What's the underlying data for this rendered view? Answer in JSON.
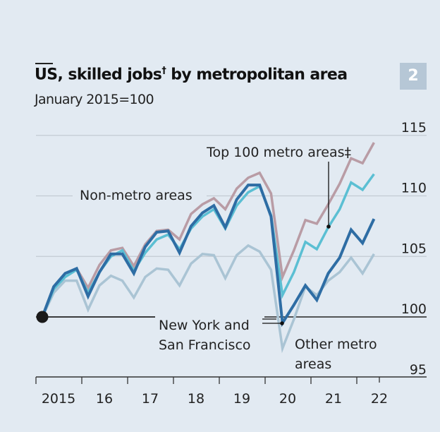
{
  "header": {
    "title": "US, skilled jobs",
    "title_mark": "†",
    "subtitle": "January 2015=100",
    "chart_number": "2"
  },
  "chart_data": {
    "type": "line",
    "title": "US, skilled jobs† by metropolitan area",
    "subtitle": "January 2015=100",
    "x_start": "2015 Q1",
    "x_frequency": "quarterly",
    "x_ticks": [
      "2015",
      "16",
      "17",
      "18",
      "19",
      "20",
      "21",
      "22"
    ],
    "ylim": [
      95,
      115
    ],
    "y_ticks": [
      "95",
      "100",
      "105",
      "110",
      "115"
    ],
    "y_tick_values": [
      95,
      100,
      105,
      110,
      115
    ],
    "grid": true,
    "series": [
      {
        "name": "Other metro areas",
        "color": "#aac4d4",
        "values": [
          100,
          102.0,
          103.0,
          103.0,
          100.6,
          102.6,
          103.4,
          103.0,
          101.6,
          103.3,
          104.0,
          103.9,
          102.6,
          104.4,
          105.2,
          105.1,
          103.2,
          105.1,
          105.9,
          105.4,
          103.9,
          97.4,
          99.8,
          102.5,
          101.8,
          103.0,
          103.7,
          104.9,
          103.6,
          105.2
        ]
      },
      {
        "name": "Non-metro areas",
        "color": "#b99ca5",
        "values": [
          100,
          102.4,
          103.6,
          104.0,
          102.4,
          104.3,
          105.5,
          105.7,
          104.2,
          106.0,
          107.1,
          107.2,
          106.4,
          108.5,
          109.3,
          109.8,
          108.9,
          110.6,
          111.5,
          111.9,
          110.2,
          103.3,
          105.5,
          108.0,
          107.7,
          109.3,
          111.0,
          113.1,
          112.7,
          114.4
        ]
      },
      {
        "name": "Top 100 metro areas‡",
        "color": "#5bbfd3",
        "values": [
          100,
          102.3,
          103.3,
          103.9,
          102.0,
          103.7,
          105.0,
          105.5,
          103.8,
          105.3,
          106.4,
          106.8,
          105.6,
          107.3,
          108.3,
          108.9,
          107.3,
          109.2,
          110.3,
          110.8,
          108.4,
          101.8,
          103.7,
          106.2,
          105.6,
          107.4,
          108.9,
          111.1,
          110.5,
          111.8
        ]
      },
      {
        "name": "New York and San Francisco",
        "color": "#2e6da4",
        "values": [
          100,
          102.5,
          103.6,
          104.0,
          101.7,
          103.7,
          105.2,
          105.2,
          103.6,
          105.8,
          107.0,
          107.1,
          105.3,
          107.5,
          108.6,
          109.2,
          107.4,
          109.7,
          110.9,
          110.9,
          108.3,
          99.5,
          101.0,
          102.6,
          101.4,
          103.6,
          104.9,
          107.2,
          106.1,
          108.1
        ]
      }
    ],
    "annotations": [
      "Top 100 metro areas‡",
      "Non-metro areas",
      "New York and",
      "San Francisco",
      "Other metro",
      "areas"
    ]
  }
}
